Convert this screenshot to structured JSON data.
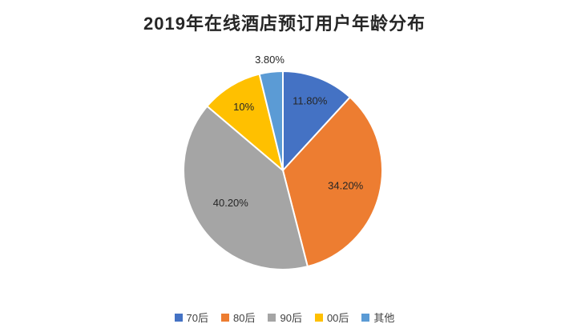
{
  "chart_data": {
    "type": "pie",
    "title": "2019年在线酒店预订用户年龄分布",
    "categories": [
      "70后",
      "80后",
      "90后",
      "00后",
      "其他"
    ],
    "values": [
      11.8,
      34.2,
      40.2,
      10,
      3.8
    ],
    "labels": [
      "11.80%",
      "34.20%",
      "40.20%",
      "10%",
      "3.80%"
    ],
    "colors": [
      "#4472C4",
      "#ED7D31",
      "#A5A5A5",
      "#FFC000",
      "#5B9BD5"
    ],
    "start_angle": 0,
    "direction": "clockwise",
    "legend_position": "bottom",
    "label_radius": [
      0.75,
      0.65,
      0.62,
      0.75,
      1.12
    ],
    "label_color": "#262626",
    "background": "#ffffff"
  }
}
